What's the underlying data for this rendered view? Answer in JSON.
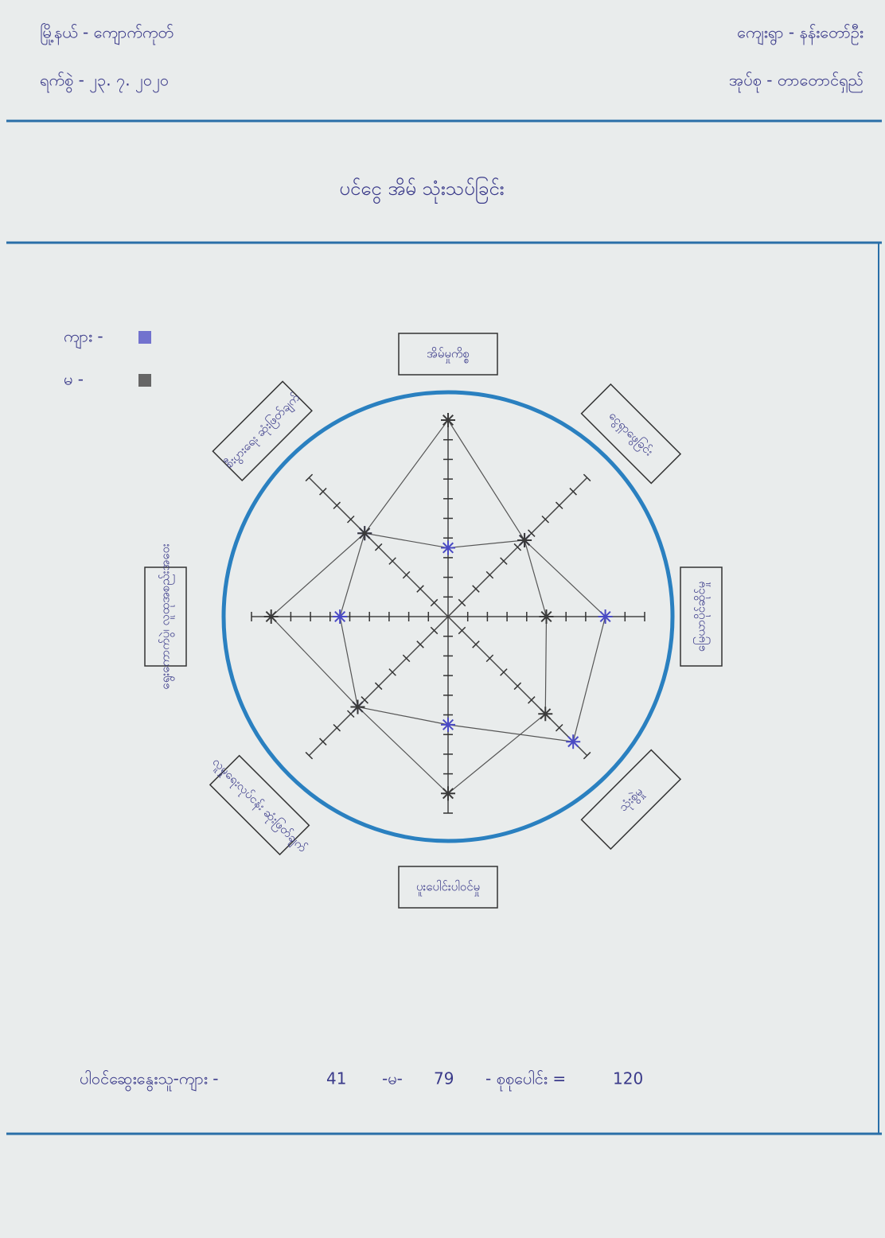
{
  "header": {
    "township": "မြို့နယ် - ကျောက်ကုတ်",
    "date": "ရက်စွဲ - ၂၃. ၇. ၂၀၂၀",
    "village": "ကျေးရွာ - နန်းတော်ဦး",
    "group": "အုပ်စု - တာတောင်ရှည်"
  },
  "chart_data": {
    "type": "radar",
    "title": "ပင်ငွေ အိမ် သုံးသပ်ခြင်း",
    "categories": [
      "အိမ်မှုကိစ္စ",
      "ငွေရှာဖွေခြင်း",
      "မြေယာပိုင်ဆိုင်မှု",
      "သုံးစွဲမှု",
      "ပူးပေါင်းပါဝင်မှု",
      "လူမှုရေးလုပ်ငန်း ဆုံးဖြတ်ချက်",
      "ရွေးကောက်ပွဲ၊ လူထုအစည်းအဝေး",
      "စီးပွားရေး ဆုံးဖြတ်ချက်"
    ],
    "series": [
      {
        "name": "ကျား -",
        "color": "#4a4ac4",
        "values": [
          3.5,
          5.5,
          8,
          9,
          5.5,
          6.5,
          5.5,
          6
        ]
      },
      {
        "name": "မ -",
        "color": "#3a3a3a",
        "values": [
          10,
          5.5,
          5,
          7,
          9,
          6.5,
          9,
          6
        ]
      }
    ],
    "rlim": [
      0,
      10
    ],
    "rticks": [
      1,
      2,
      3,
      4,
      5,
      6,
      7,
      8,
      9,
      10
    ]
  },
  "footer": {
    "label": "ပါဝင်ဆွေးနွေးသူ-ကျား -",
    "male": 41,
    "female_label": "-မ-",
    "female": 79,
    "total_label": "- စုစုပေါင်း =",
    "total": 120
  }
}
